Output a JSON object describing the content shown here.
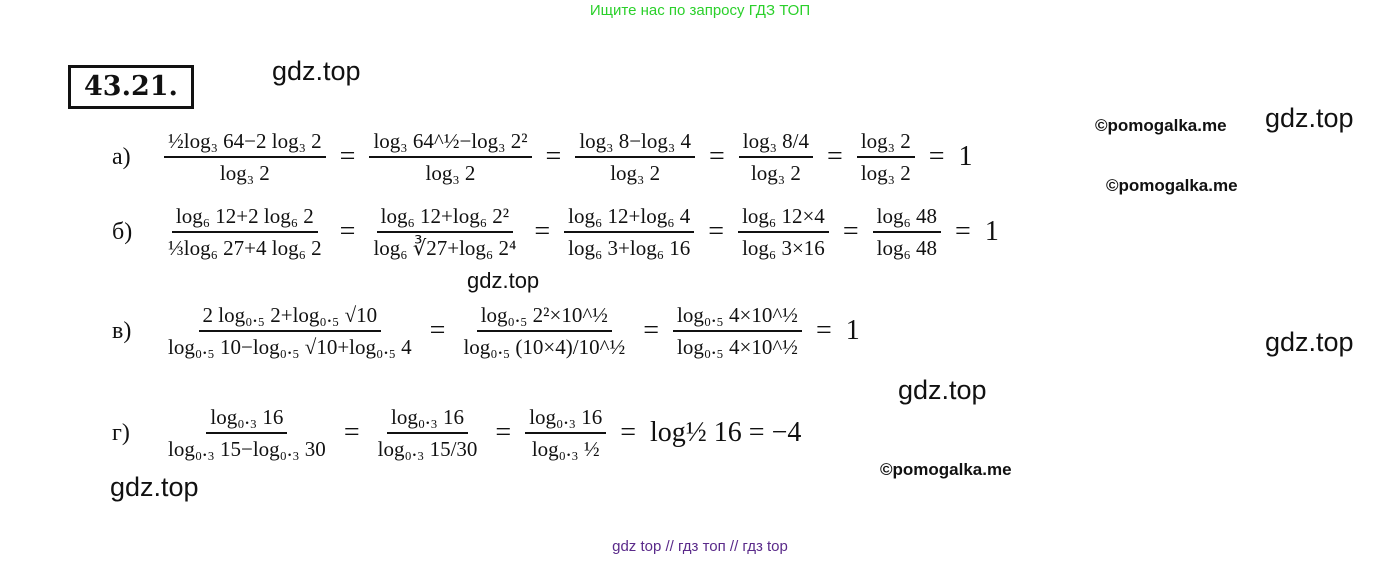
{
  "header": {
    "search_hint": "Ищите нас по запросу ГДЗ ТОП"
  },
  "problem_number": "43.21.",
  "watermarks": {
    "gdz": "gdz.top",
    "pomogalka": "©pomogalka.me"
  },
  "rows": [
    {
      "label": "а)",
      "steps": [
        {
          "num": "½log₃ 64−2 log₃ 2",
          "den": "log₃ 2"
        },
        {
          "num": "log₃ 64^½−log₃ 2²",
          "den": "log₃ 2"
        },
        {
          "num": "log₃ 8−log₃ 4",
          "den": "log₃ 2"
        },
        {
          "num": "log₃ 8/4",
          "den": "log₃ 2"
        },
        {
          "num": "log₃ 2",
          "den": "log₃ 2"
        }
      ],
      "result": "1"
    },
    {
      "label": "б)",
      "steps": [
        {
          "num": "log₆ 12+2 log₆ 2",
          "den": "⅓log₆ 27+4 log₆ 2"
        },
        {
          "num": "log₆ 12+log₆ 2²",
          "den": "log₆ ∛27+log₆ 2⁴"
        },
        {
          "num": "log₆ 12+log₆ 4",
          "den": "log₆ 3+log₆ 16"
        },
        {
          "num": "log₆ 12×4",
          "den": "log₆ 3×16"
        },
        {
          "num": "log₆ 48",
          "den": "log₆ 48"
        }
      ],
      "result": "1"
    },
    {
      "label": "в)",
      "steps": [
        {
          "num": "2 log₀.₅ 2+log₀.₅ √10",
          "den": "log₀.₅ 10−log₀.₅ √10+log₀.₅ 4"
        },
        {
          "num": "log₀.₅ 2²×10^½",
          "den": "log₀.₅ (10×4)/10^½"
        },
        {
          "num": "log₀.₅ 4×10^½",
          "den": "log₀.₅ 4×10^½"
        }
      ],
      "result": "1"
    },
    {
      "label": "г)",
      "steps": [
        {
          "num": "log₀.₃ 16",
          "den": "log₀.₃ 15−log₀.₃ 30"
        },
        {
          "num": "log₀.₃ 16",
          "den": "log₀.₃ 15/30"
        },
        {
          "num": "log₀.₃ 16",
          "den": "log₀.₃ ½"
        }
      ],
      "result": "log½ 16 = −4"
    }
  ],
  "footer": {
    "links": "gdz top  //  гдз топ  //  гдз top"
  }
}
